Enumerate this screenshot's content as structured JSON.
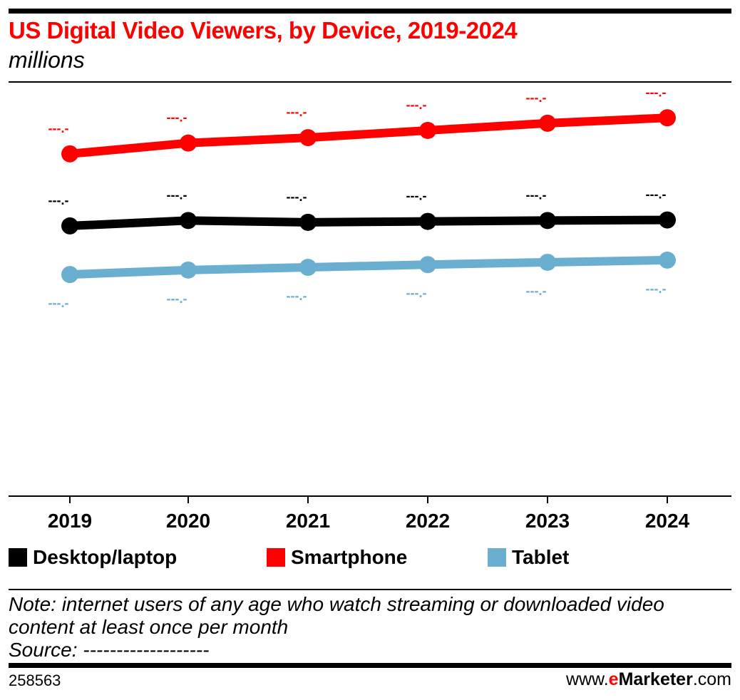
{
  "header": {
    "title": "US Digital Video Viewers, by Device, 2019-2024",
    "subtitle": "millions"
  },
  "chart_data": {
    "type": "line",
    "title": "US Digital Video Viewers, by Device, 2019-2024",
    "subtitle": "millions",
    "categories": [
      "2019",
      "2020",
      "2021",
      "2022",
      "2023",
      "2024"
    ],
    "series": [
      {
        "name": "Desktop/laptop",
        "color": "#000000",
        "values": [
          150,
          153,
          152,
          152.5,
          153,
          153.3
        ],
        "data_labels": [
          "---.-",
          "---.-",
          "---.-",
          "---.-",
          "---.-",
          "---.-"
        ],
        "label_position": "above"
      },
      {
        "name": "Smartphone",
        "color": "#ff0000",
        "values": [
          190,
          196,
          199,
          203,
          207,
          210
        ],
        "data_labels": [
          "---.-",
          "---.-",
          "---.-",
          "---.-",
          "---.-",
          "---.-"
        ],
        "label_position": "above"
      },
      {
        "name": "Tablet",
        "color": "#6aaed0",
        "values": [
          123,
          125.5,
          127,
          128.5,
          129.8,
          131
        ],
        "data_labels": [
          "---.-",
          "---.-",
          "---.-",
          "---.-",
          "---.-",
          "---.-"
        ],
        "label_position": "below"
      }
    ],
    "ylim": [
      0,
      220
    ],
    "grid": false,
    "legend_position": "bottom"
  },
  "legend": {
    "items": [
      {
        "label": "Desktop/laptop",
        "color": "#000000"
      },
      {
        "label": "Smartphone",
        "color": "#ff0000"
      },
      {
        "label": "Tablet",
        "color": "#6aaed0"
      }
    ]
  },
  "footer": {
    "note": "Note: internet users of any age who watch streaming or downloaded video content at least once per month",
    "source": "Source: -------------------",
    "chart_id": "258563",
    "brand_prefix": "www.",
    "brand_e": "e",
    "brand_name": "Marketer",
    "brand_suffix": ".com"
  }
}
